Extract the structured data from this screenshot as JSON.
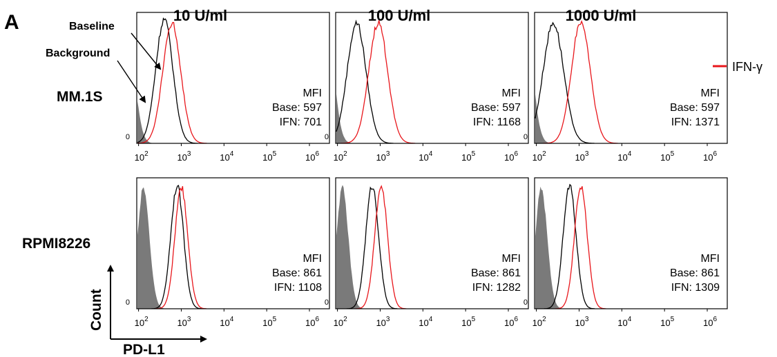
{
  "figure": {
    "panel_letter": "A",
    "columns": [
      "10 U/ml",
      "100 U/ml",
      "1000 U/ml"
    ],
    "rows": [
      "MM.1S",
      "RPMI8226"
    ],
    "legend": {
      "label": "IFN-γ",
      "color": "#e8161b"
    },
    "annotations": {
      "baseline": "Baseline",
      "background": "Background"
    },
    "axes": {
      "x_label": "PD-L1",
      "y_label": "Count",
      "zero_tick": "0"
    },
    "mfi_header": "MFI",
    "base_prefix": "Base:",
    "ifn_prefix": "IFN:",
    "colors": {
      "background_fill": "#7a7a7a",
      "baseline": "#000000",
      "ifn": "#e8161b"
    }
  },
  "chart_data": [
    {
      "type": "area",
      "row": "MM.1S",
      "column": "10 U/ml",
      "x_scale": "log",
      "xlim": [
        50,
        1000000
      ],
      "x_ticks": [
        100,
        1000,
        10000,
        100000,
        1000000
      ],
      "series": [
        {
          "name": "Background",
          "peak_x": 60,
          "spread": 0.16,
          "peak_y": 0.72
        },
        {
          "name": "Baseline",
          "peak_x": 400,
          "spread": 0.2,
          "peak_y": 0.98
        },
        {
          "name": "IFN-γ",
          "peak_x": 600,
          "spread": 0.21,
          "peak_y": 0.95
        }
      ],
      "mfi": {
        "base": 597,
        "ifn": 701
      }
    },
    {
      "type": "area",
      "row": "MM.1S",
      "column": "100 U/ml",
      "x_scale": "log",
      "xlim": [
        50,
        1000000
      ],
      "x_ticks": [
        100,
        1000,
        10000,
        100000,
        1000000
      ],
      "series": [
        {
          "name": "Background",
          "peak_x": 60,
          "spread": 0.16,
          "peak_y": 0.8
        },
        {
          "name": "Baseline",
          "peak_x": 280,
          "spread": 0.22,
          "peak_y": 0.95
        },
        {
          "name": "IFN-γ",
          "peak_x": 900,
          "spread": 0.22,
          "peak_y": 0.95
        }
      ],
      "mfi": {
        "base": 597,
        "ifn": 1168
      }
    },
    {
      "type": "area",
      "row": "MM.1S",
      "column": "1000 U/ml",
      "x_scale": "log",
      "xlim": [
        50,
        1000000
      ],
      "x_ticks": [
        100,
        1000,
        10000,
        100000,
        1000000
      ],
      "series": [
        {
          "name": "Background",
          "peak_x": 60,
          "spread": 0.16,
          "peak_y": 0.8
        },
        {
          "name": "Baseline",
          "peak_x": 250,
          "spread": 0.24,
          "peak_y": 0.95
        },
        {
          "name": "IFN-γ",
          "peak_x": 1100,
          "spread": 0.22,
          "peak_y": 0.96
        }
      ],
      "mfi": {
        "base": 597,
        "ifn": 1371
      }
    },
    {
      "type": "area",
      "row": "RPMI8226",
      "column": "10 U/ml",
      "x_scale": "log",
      "xlim": [
        50,
        1000000
      ],
      "x_ticks": [
        100,
        1000,
        10000,
        100000,
        1000000
      ],
      "series": [
        {
          "name": "Background",
          "peak_x": 130,
          "spread": 0.14,
          "peak_y": 0.95
        },
        {
          "name": "Baseline",
          "peak_x": 800,
          "spread": 0.15,
          "peak_y": 0.97
        },
        {
          "name": "IFN-γ",
          "peak_x": 1000,
          "spread": 0.15,
          "peak_y": 0.96
        }
      ],
      "mfi": {
        "base": 861,
        "ifn": 1108
      }
    },
    {
      "type": "area",
      "row": "RPMI8226",
      "column": "100 U/ml",
      "x_scale": "log",
      "xlim": [
        50,
        1000000
      ],
      "x_ticks": [
        100,
        1000,
        10000,
        100000,
        1000000
      ],
      "series": [
        {
          "name": "Background",
          "peak_x": 130,
          "spread": 0.14,
          "peak_y": 0.95
        },
        {
          "name": "Baseline",
          "peak_x": 650,
          "spread": 0.15,
          "peak_y": 0.97
        },
        {
          "name": "IFN-γ",
          "peak_x": 1050,
          "spread": 0.15,
          "peak_y": 0.96
        }
      ],
      "mfi": {
        "base": 861,
        "ifn": 1282
      }
    },
    {
      "type": "area",
      "row": "RPMI8226",
      "column": "1000 U/ml",
      "x_scale": "log",
      "xlim": [
        50,
        1000000
      ],
      "x_ticks": [
        100,
        1000,
        10000,
        100000,
        1000000
      ],
      "series": [
        {
          "name": "Background",
          "peak_x": 130,
          "spread": 0.14,
          "peak_y": 0.95
        },
        {
          "name": "Baseline",
          "peak_x": 600,
          "spread": 0.15,
          "peak_y": 0.97
        },
        {
          "name": "IFN-γ",
          "peak_x": 1100,
          "spread": 0.15,
          "peak_y": 0.96
        }
      ],
      "mfi": {
        "base": 861,
        "ifn": 1309
      }
    }
  ]
}
